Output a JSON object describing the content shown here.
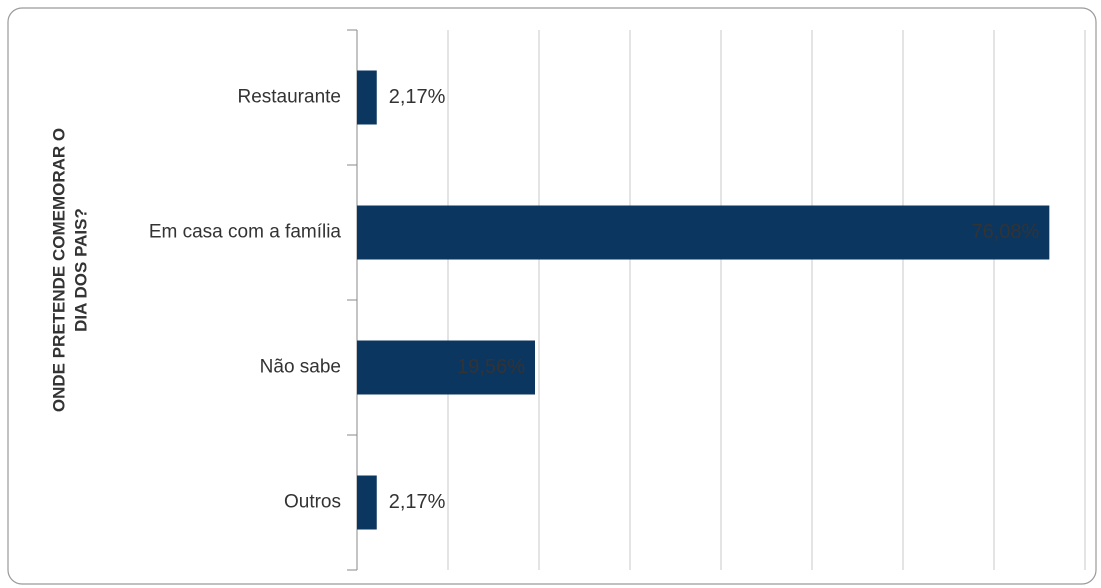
{
  "chart_data": {
    "type": "bar",
    "orientation": "horizontal",
    "y_label": [
      "ONDE PRETENDE COMEMORAR O",
      "DIA DOS PAIS?"
    ],
    "categories": [
      "Restaurante",
      "Em casa com a família",
      "Não sabe",
      "Outros"
    ],
    "values": [
      2.17,
      76.08,
      19.56,
      2.17
    ],
    "value_labels": [
      "2,17%",
      "76,08%",
      "19,56%",
      "2,17%"
    ],
    "color": "#0b3660",
    "xlim": [
      0,
      80
    ],
    "xticks": [
      0,
      10,
      20,
      30,
      40,
      50,
      60,
      70,
      80
    ],
    "grid": true
  }
}
